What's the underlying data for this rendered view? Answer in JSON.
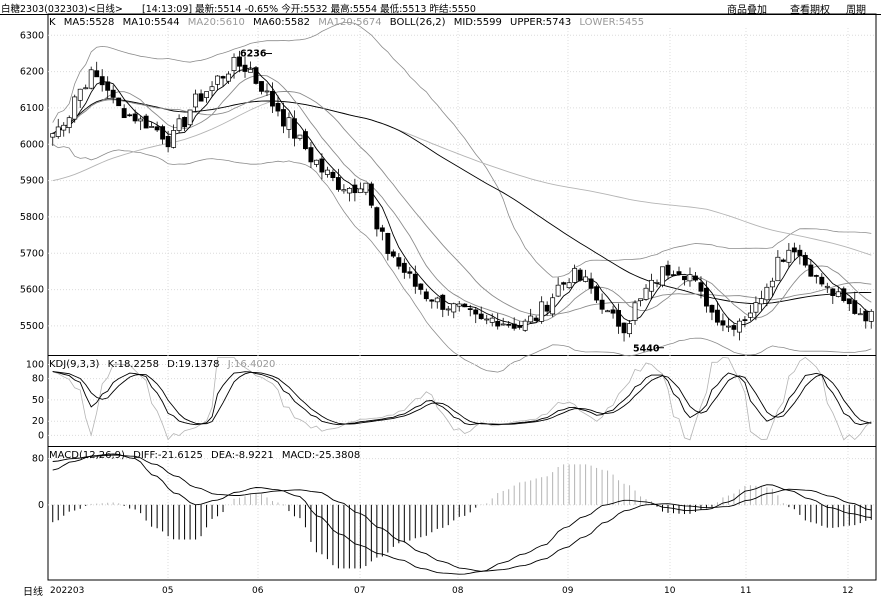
{
  "header": {
    "symbol": "白糖2303(032303)<日线>",
    "time": "[14:13:09]",
    "latest_label": "最新",
    "latest": "5514",
    "change": "-0.65%",
    "open_label": "今开",
    "open": "5532",
    "high_label": "最高",
    "high": "5554",
    "low_label": "最低",
    "low": "5513",
    "prev_label": "昨结",
    "prev": "5550"
  },
  "toolbar": {
    "overlay_label": "商品叠加",
    "rights_label": "查看期权",
    "period_label": "周期"
  },
  "panel_main": {
    "k": "K",
    "ma5": "MA5:5528",
    "ma10": "MA10:5544",
    "ma20": "MA20:5610",
    "ma60": "MA60:5582",
    "ma120": "MA120:5674",
    "boll": "BOLL(26,2)",
    "mid": "MID:5599",
    "upper": "UPPER:5743",
    "lower": "LOWER:5455"
  },
  "panel_kdj": {
    "name": "KDJ(9,3,3)",
    "k": "K:18.2258",
    "d": "D:19.1378",
    "j": "J:16.4020"
  },
  "panel_macd": {
    "name": "MACD(12,26,9)",
    "diff": "DIFF:-21.6125",
    "dea": "DEA:-8.9221",
    "macd": "MACD:-25.3808"
  },
  "footer": {
    "period": "日线"
  },
  "colors": {
    "bg": "#ffffff",
    "grid": "#dcdcdc",
    "line": "#000000",
    "grey_line": "#8c8c8c",
    "light_line": "#b4b4b4",
    "bar_down": "#000000",
    "bar_up": "#ffffff"
  },
  "chart_data": [
    {
      "type": "candlestick",
      "ylim": [
        5420,
        6320
      ],
      "yticks": [
        6300,
        6200,
        6100,
        6000,
        5900,
        5800,
        5700,
        5600,
        5500
      ],
      "x_labels": [
        "202203",
        "05",
        "06",
        "07",
        "08",
        "09",
        "10",
        "11",
        "12"
      ],
      "annotations": [
        {
          "text": "6236",
          "value": 6236
        },
        {
          "text": "5440",
          "value": 5440
        }
      ],
      "close_anchors": [
        6030,
        6070,
        6150,
        6190,
        6165,
        6100,
        6080,
        6060,
        6040,
        6010,
        6060,
        6120,
        6150,
        6190,
        6220,
        6210,
        6160,
        6110,
        6060,
        6010,
        5960,
        5920,
        5890,
        5880,
        5900,
        5760,
        5700,
        5650,
        5610,
        5580,
        5560,
        5550,
        5530,
        5510,
        5520,
        5510,
        5500,
        5520,
        5560,
        5610,
        5640,
        5620,
        5570,
        5520,
        5500,
        5560,
        5610,
        5650,
        5660,
        5640,
        5580,
        5530,
        5500,
        5520,
        5550,
        5620,
        5690,
        5720,
        5670,
        5620,
        5590,
        5560,
        5540,
        5525
      ],
      "bars": 150,
      "lines": [
        "MA5",
        "MA10",
        "MA20",
        "MA60",
        "MA120",
        "BOLL MID",
        "BOLL UPPER",
        "BOLL LOWER"
      ]
    },
    {
      "type": "line",
      "name": "KDJ(9,3,3)",
      "ylim": [
        -15,
        112
      ],
      "yticks": [
        100,
        80,
        50,
        20,
        0
      ],
      "k_anchors": [
        90,
        86,
        76,
        40,
        60,
        80,
        88,
        85,
        60,
        30,
        18,
        15,
        18,
        70,
        88,
        90,
        86,
        80,
        60,
        42,
        28,
        18,
        15,
        17,
        20,
        22,
        25,
        30,
        40,
        50,
        40,
        25,
        15,
        17,
        15,
        16,
        18,
        20,
        25,
        35,
        40,
        35,
        28,
        35,
        50,
        70,
        85,
        85,
        55,
        25,
        35,
        70,
        88,
        82,
        40,
        20,
        30,
        60,
        85,
        88,
        60,
        30,
        15,
        18
      ]
    },
    {
      "type": "bar",
      "name": "MACD(12,26,9)",
      "ylim": [
        -130,
        100
      ],
      "yticks": [
        80,
        0
      ],
      "diff_anchors": [
        60,
        75,
        85,
        88,
        80,
        50,
        20,
        0,
        8,
        22,
        30,
        26,
        15,
        -20,
        -50,
        -70,
        -85,
        -95,
        -110,
        -118,
        -120,
        -115,
        -100,
        -85,
        -70,
        -40,
        -20,
        0,
        8,
        5,
        -5,
        -10,
        -8,
        5,
        25,
        35,
        25,
        10,
        -5,
        -15,
        -22
      ],
      "dea_anchors": [
        75,
        80,
        84,
        86,
        84,
        70,
        50,
        30,
        18,
        16,
        20,
        24,
        26,
        22,
        5,
        -15,
        -40,
        -62,
        -82,
        -98,
        -110,
        -115,
        -112,
        -105,
        -94,
        -75,
        -55,
        -30,
        -10,
        0,
        2,
        -2,
        -5,
        -3,
        8,
        20,
        27,
        25,
        15,
        3,
        -9
      ],
      "macd": "histogram = 2 × (DIFF − DEA)"
    }
  ]
}
